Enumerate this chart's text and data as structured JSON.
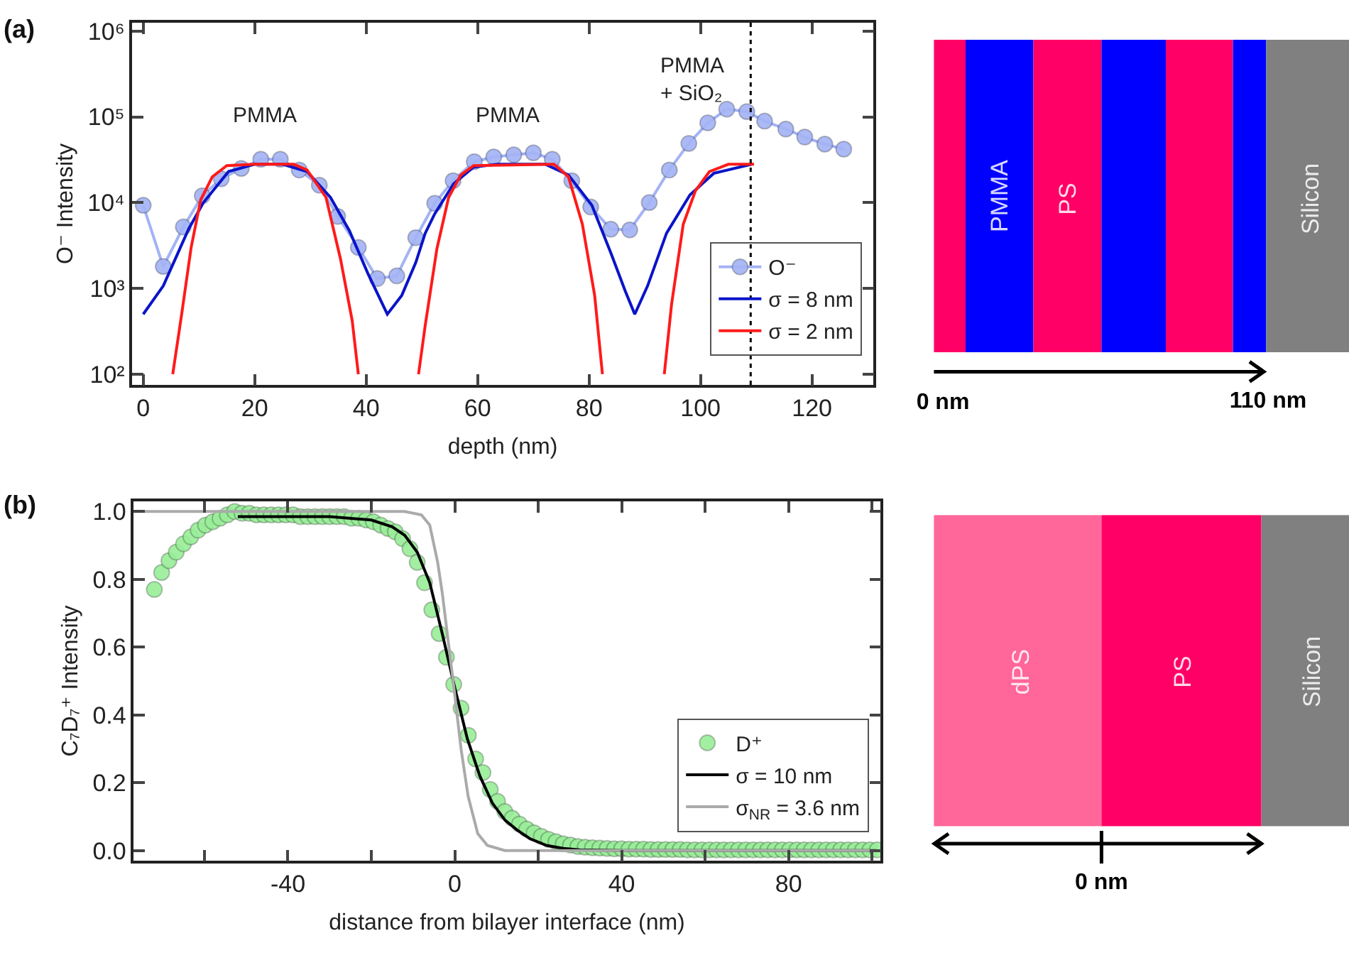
{
  "chart_data": [
    {
      "type": "line",
      "title": "(a)",
      "xlabel": "depth (nm)",
      "ylabel": "O⁻ Intensity",
      "log": "y",
      "legend": "bottom right",
      "xlim": [
        -2,
        131
      ],
      "xticks": [
        0,
        20,
        40,
        60,
        80,
        100,
        120
      ],
      "ylim": [
        75,
        1250000
      ],
      "yticks": [
        {
          "value": 100,
          "label": "10²"
        },
        {
          "value": 1000,
          "label": "10³"
        },
        {
          "value": 10000,
          "label": "10⁴"
        },
        {
          "value": 100000,
          "label": "10⁵"
        },
        {
          "value": 1000000,
          "label": "10⁶"
        }
      ],
      "series": [
        {
          "name": "O⁻",
          "color": "#a3b3f5",
          "marker": "circle",
          "x": [
            0,
            3.6,
            7.2,
            10.6,
            14,
            17.6,
            21.1,
            24.6,
            28,
            31.6,
            34.9,
            38.6,
            42,
            45.5,
            48.9,
            52.3,
            55.6,
            59.4,
            62.9,
            66.5,
            70,
            73.4,
            76.9,
            80.3,
            83.9,
            87.3,
            90.8,
            94.4,
            97.9,
            101.3,
            104.7,
            108.3,
            111.5,
            115.3,
            118.7,
            122.3,
            125.7
          ],
          "values": [
            9300,
            1800,
            5200,
            12000,
            19000,
            25000,
            32000,
            32000,
            24000,
            16000,
            6900,
            3000,
            1300,
            1400,
            3900,
            9800,
            18000,
            30000,
            34000,
            36000,
            38000,
            32000,
            18000,
            8900,
            4900,
            4800,
            10000,
            24000,
            49000,
            85000,
            123000,
            115000,
            89000,
            72000,
            58000,
            48000,
            42000
          ]
        },
        {
          "name": "σ = 8 nm",
          "color": "#0a14c8",
          "x": [
            0,
            3.6,
            8.2,
            10.8,
            15.3,
            20,
            25,
            29.4,
            33.6,
            37,
            40.3,
            43.8,
            46.4,
            48.9,
            50.6,
            52.3,
            55.7,
            59.3,
            63.6,
            72.1,
            76.3,
            80.5,
            83.9,
            86.5,
            88.2,
            90.5,
            93.9,
            98.1,
            102.4,
            109.2
          ],
          "values": [
            500,
            1070,
            5000,
            10000,
            23000,
            28000,
            28000,
            23000,
            11500,
            4700,
            1500,
            500,
            830,
            2000,
            4400,
            7400,
            16600,
            26000,
            28000,
            28000,
            21000,
            9300,
            2600,
            930,
            500,
            1070,
            4400,
            12300,
            22000,
            28000
          ]
        },
        {
          "name": "σ = 2 nm",
          "color": "#ff1a1a",
          "x": [
            5.3,
            6.9,
            8.6,
            10.3,
            12.4,
            15,
            20,
            27,
            29.4,
            32.8,
            35.4,
            37.5,
            38.6,
            44,
            49.4,
            50.6,
            52.7,
            54.8,
            57,
            59.3,
            73.7,
            76.3,
            78.8,
            81,
            82.4,
            88,
            93.5,
            94.8,
            96.9,
            99.1,
            101.6,
            105,
            109.6
          ],
          "values": [
            100,
            500,
            3000,
            10700,
            20000,
            27000,
            28000,
            28000,
            24000,
            11500,
            2200,
            420,
            100,
            null,
            100,
            370,
            2900,
            11500,
            21000,
            27000,
            28000,
            20000,
            5600,
            830,
            100,
            null,
            100,
            650,
            5600,
            13800,
            23000,
            28000,
            28000
          ]
        }
      ],
      "ref_lines": [
        {
          "axis": "x",
          "value": 109,
          "line_style": "dotted",
          "color": "#000000"
        }
      ],
      "annotations": [
        "PMMA",
        "PMMA",
        "PMMA\n+ SiO₂"
      ]
    },
    {
      "type": "other",
      "annotations": [
        "PMMA",
        "PS",
        "Silicon",
        "0 nm",
        "110 nm"
      ]
    },
    {
      "type": "line",
      "title": "(b)",
      "xlabel": "distance from bilayer interface (nm)",
      "ylabel": "C₇D₇⁺ Intensity",
      "legend": "bottom right",
      "xlim": [
        -77,
        102
      ],
      "xticks": [
        {
          "value": -60,
          "label": null
        },
        -40,
        {
          "value": -20,
          "label": null
        },
        0,
        {
          "value": 20,
          "label": null
        },
        40,
        {
          "value": 60,
          "label": null
        },
        80,
        {
          "value": 100,
          "label": null
        }
      ],
      "ylim": [
        -0.03,
        1.03
      ],
      "yticks": [
        {
          "value": 0,
          "label": "0.0"
        },
        0.2,
        0.4,
        0.6,
        0.8,
        {
          "value": 1,
          "label": "1.0"
        }
      ],
      "series": [
        {
          "name": "D⁺",
          "type": "scatter",
          "color": "#99ee99",
          "marker": "circle",
          "x": [
            -72,
            -70.25,
            -68.5,
            -66.75,
            -65,
            -63.25,
            -61.5,
            -59.75,
            -58,
            -56.25,
            -54.5,
            -52.75,
            -51,
            -49.25,
            -47.5,
            -45.75,
            -44,
            -42.25,
            -40.5,
            -38.75,
            -37,
            -35.25,
            -33.5,
            -31.75,
            -30,
            -28.25,
            -26.5,
            -24.75,
            -23,
            -21.25,
            -19.5,
            -17.75,
            -16,
            -14.25,
            -12.5,
            -10.75,
            -9,
            -7.25,
            -5.5,
            -3.75,
            -2,
            -0.25,
            1.5,
            3.25,
            5,
            6.75,
            8.5,
            10.25,
            12,
            13.75,
            15.5,
            17.25,
            19,
            20.75,
            22.5,
            24.25,
            26,
            27.75,
            29.5,
            31.25,
            33,
            34.75,
            36.5,
            38.25,
            40,
            41.75,
            43.5,
            45.25,
            47,
            48.75,
            50.5,
            52.25,
            54,
            55.75,
            57.5,
            59.25,
            61,
            62.75,
            64.5,
            66.25,
            68,
            69.75,
            71.5,
            73.25,
            75,
            76.75,
            78.5,
            80.25,
            82,
            83.75,
            85.5,
            87.25,
            89,
            90.75,
            92.5,
            94.25,
            96,
            97.75,
            99.5,
            101.25
          ],
          "values": [
            0.77,
            0.82,
            0.855,
            0.88,
            0.905,
            0.925,
            0.945,
            0.96,
            0.97,
            0.98,
            0.99,
            1.0,
            0.995,
            0.995,
            0.99,
            0.99,
            0.99,
            0.99,
            0.99,
            0.99,
            0.985,
            0.985,
            0.985,
            0.985,
            0.985,
            0.985,
            0.985,
            0.98,
            0.98,
            0.975,
            0.97,
            0.96,
            0.95,
            0.94,
            0.92,
            0.89,
            0.85,
            0.79,
            0.71,
            0.64,
            0.57,
            0.49,
            0.42,
            0.34,
            0.27,
            0.23,
            0.18,
            0.145,
            0.115,
            0.095,
            0.078,
            0.063,
            0.052,
            0.042,
            0.033,
            0.026,
            0.02,
            0.016,
            0.012,
            0.01,
            0.008,
            0.007,
            0.006,
            0.005,
            0.005,
            0.004,
            0.004,
            0.004,
            0.003,
            0.003,
            0.003,
            0.003,
            0.003,
            0.002,
            0.002,
            0.002,
            0.002,
            0.002,
            0.002,
            0.002,
            0.002,
            0.002,
            0.002,
            0.002,
            0.002,
            0.002,
            0.002,
            0.002,
            0.002,
            0.002,
            0.002,
            0.002,
            0.002,
            0.002,
            0.002,
            0.002,
            0.002,
            0.002,
            0.002,
            0.002
          ]
        },
        {
          "name": "σ = 10 nm",
          "color": "#000000",
          "x": [
            -52,
            -30,
            -20,
            -15,
            -12,
            -9,
            -6,
            -3,
            0,
            3,
            6,
            9,
            12,
            15,
            18,
            22,
            26,
            30,
            40,
            101
          ],
          "values": [
            0.985,
            0.985,
            0.975,
            0.955,
            0.93,
            0.88,
            0.79,
            0.64,
            0.48,
            0.33,
            0.22,
            0.14,
            0.09,
            0.06,
            0.035,
            0.015,
            0.006,
            0.002,
            0,
            0
          ]
        },
        {
          "name": "σ$_{NR}$ = 3.6 nm",
          "color": "#aaaaaa",
          "x": [
            -77,
            -12,
            -8,
            -6,
            -4.1,
            -3,
            -1.8,
            -0.2,
            1.5,
            3.2,
            5.5,
            7.8,
            12,
            101
          ],
          "values": [
            1.0,
            1.0,
            0.99,
            0.96,
            0.85,
            0.76,
            0.64,
            0.48,
            0.3,
            0.16,
            0.05,
            0.015,
            0,
            0
          ]
        }
      ]
    },
    {
      "type": "other",
      "annotations": [
        "dPS",
        "PS",
        "Silicon",
        "0 nm"
      ]
    }
  ]
}
